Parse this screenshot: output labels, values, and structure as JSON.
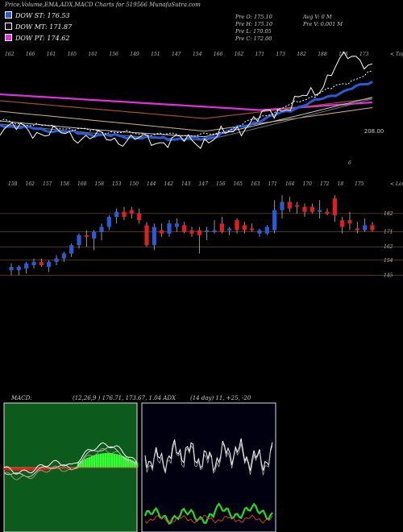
{
  "header": {
    "title": "Price,Volume,EMA,ADX,MACD Charts for 519566  MunafaSutra.com"
  },
  "legend": [
    {
      "label": "DOW ST:",
      "value": "176.53",
      "color": "#2a5ad8"
    },
    {
      "label": "DOW MT:",
      "value": "171.87",
      "color": "#111111"
    },
    {
      "label": "DOW PT:",
      "value": "174.62",
      "color": "#e030e0"
    }
  ],
  "ohlc": {
    "open": "Pre   O: 175.10",
    "high": "Pre   H: 175.10",
    "low": "Pre   L: 170.05",
    "close": "Pre   C: 172.00",
    "avg_vol": "Avg V: 0  M",
    "pre_vol": "Pre   V: 0.001 M"
  },
  "chart_data": [
    {
      "type": "line",
      "name": "EMA panel",
      "top_tick_labels": [
        "162",
        "166",
        "161",
        "165",
        "161",
        "156",
        "149",
        "151",
        "147",
        "154",
        "166",
        "162",
        "171",
        "173",
        "182",
        "188",
        "178",
        "173"
      ],
      "top_axis_label": "< Tops",
      "right_label": "208.00",
      "bottom_tick_labels": [
        "158",
        "162",
        "157",
        "158",
        "160",
        "158",
        "153",
        "150",
        "144",
        "142",
        "143",
        "147",
        "156",
        "165",
        "163",
        "171",
        "164",
        "170",
        "172",
        "18",
        "175"
      ],
      "bottom_axis_label": "< Lows",
      "marker": "6"
    },
    {
      "type": "candlestick",
      "name": "Price panel",
      "y_tick_labels": [
        "182",
        "171",
        "162",
        "154",
        "145"
      ],
      "ylim": [
        136,
        195
      ],
      "candles": [
        {
          "o": 148,
          "h": 152,
          "l": 145,
          "c": 150
        },
        {
          "o": 148,
          "h": 151,
          "l": 145,
          "c": 150
        },
        {
          "o": 149,
          "h": 153,
          "l": 146,
          "c": 152
        },
        {
          "o": 151,
          "h": 155,
          "l": 149,
          "c": 153
        },
        {
          "o": 153,
          "h": 155,
          "l": 150,
          "c": 151
        },
        {
          "o": 150,
          "h": 154,
          "l": 147,
          "c": 153
        },
        {
          "o": 153,
          "h": 157,
          "l": 151,
          "c": 155
        },
        {
          "o": 155,
          "h": 159,
          "l": 153,
          "c": 158
        },
        {
          "o": 158,
          "h": 164,
          "l": 156,
          "c": 163
        },
        {
          "o": 163,
          "h": 170,
          "l": 161,
          "c": 169
        },
        {
          "o": 169,
          "h": 172,
          "l": 162,
          "c": 168
        },
        {
          "o": 167,
          "h": 172,
          "l": 160,
          "c": 171
        },
        {
          "o": 171,
          "h": 176,
          "l": 166,
          "c": 174
        },
        {
          "o": 174,
          "h": 181,
          "l": 172,
          "c": 180
        },
        {
          "o": 180,
          "h": 185,
          "l": 176,
          "c": 183
        },
        {
          "o": 183,
          "h": 186,
          "l": 178,
          "c": 180
        },
        {
          "o": 184,
          "h": 186,
          "l": 179,
          "c": 182
        },
        {
          "o": 182,
          "h": 185,
          "l": 176,
          "c": 178
        },
        {
          "o": 175,
          "h": 177,
          "l": 162,
          "c": 163
        },
        {
          "o": 163,
          "h": 176,
          "l": 160,
          "c": 174
        },
        {
          "o": 172,
          "h": 176,
          "l": 168,
          "c": 170
        },
        {
          "o": 170,
          "h": 178,
          "l": 168,
          "c": 176
        },
        {
          "o": 174,
          "h": 179,
          "l": 171,
          "c": 176
        },
        {
          "o": 175,
          "h": 177,
          "l": 170,
          "c": 171
        },
        {
          "o": 172,
          "h": 174,
          "l": 168,
          "c": 170
        },
        {
          "o": 172,
          "h": 174,
          "l": 158,
          "c": 169
        },
        {
          "o": 171,
          "h": 174,
          "l": 166,
          "c": 172
        },
        {
          "o": 171,
          "h": 178,
          "l": 170,
          "c": 172
        },
        {
          "o": 176,
          "h": 180,
          "l": 170,
          "c": 171
        },
        {
          "o": 172,
          "h": 174,
          "l": 169,
          "c": 173
        },
        {
          "o": 178,
          "h": 179,
          "l": 170,
          "c": 172
        },
        {
          "o": 175,
          "h": 177,
          "l": 170,
          "c": 172
        },
        {
          "o": 173,
          "h": 176,
          "l": 171,
          "c": 172
        },
        {
          "o": 170,
          "h": 173,
          "l": 168,
          "c": 172
        },
        {
          "o": 170,
          "h": 175,
          "l": 169,
          "c": 174
        },
        {
          "o": 172,
          "h": 190,
          "l": 170,
          "c": 184
        },
        {
          "o": 184,
          "h": 193,
          "l": 179,
          "c": 189
        },
        {
          "o": 189,
          "h": 192,
          "l": 183,
          "c": 185
        },
        {
          "o": 187,
          "h": 189,
          "l": 182,
          "c": 186
        },
        {
          "o": 186,
          "h": 188,
          "l": 180,
          "c": 183
        },
        {
          "o": 186,
          "h": 188,
          "l": 182,
          "c": 183
        },
        {
          "o": 183,
          "h": 190,
          "l": 179,
          "c": 184
        },
        {
          "o": 183,
          "h": 185,
          "l": 181,
          "c": 182
        },
        {
          "o": 191,
          "h": 193,
          "l": 177,
          "c": 181
        },
        {
          "o": 178,
          "h": 180,
          "l": 170,
          "c": 174
        },
        {
          "o": 178,
          "h": 183,
          "l": 172,
          "c": 176
        },
        {
          "o": 173,
          "h": 177,
          "l": 170,
          "c": 172
        },
        {
          "o": 172,
          "h": 179,
          "l": 171,
          "c": 175
        },
        {
          "o": 175,
          "h": 177,
          "l": 171,
          "c": 172
        }
      ]
    },
    {
      "type": "area",
      "name": "MACD",
      "title": "MACD:",
      "params": "(12,26,9 ) 176.71,  173.67,  1.04 ADX"
    },
    {
      "type": "line",
      "name": "ADX",
      "params": "(14  day) 11,  +25,  -20"
    }
  ]
}
